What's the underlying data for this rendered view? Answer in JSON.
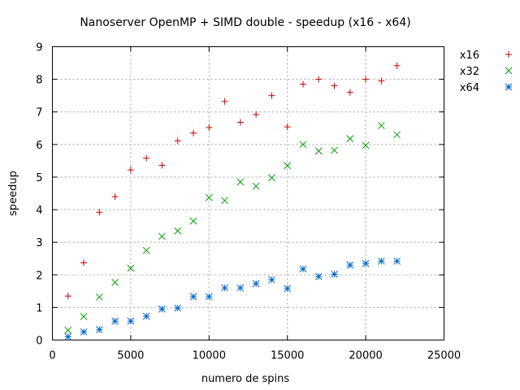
{
  "chart_data": {
    "type": "scatter",
    "title": "Nanoserver OpenMP + SIMD double - speedup (x16 - x64)",
    "xlabel": "numero de spins",
    "ylabel": "speedup",
    "xlim": [
      0,
      25000
    ],
    "ylim": [
      0,
      9
    ],
    "xticks": [
      0,
      5000,
      10000,
      15000,
      20000,
      25000
    ],
    "yticks": [
      0,
      1,
      2,
      3,
      4,
      5,
      6,
      7,
      8,
      9
    ],
    "grid": true,
    "legend_position": "top-right-outside",
    "x": [
      1000,
      2000,
      3000,
      4000,
      5000,
      6000,
      7000,
      8000,
      9000,
      10000,
      11000,
      12000,
      13000,
      14000,
      15000,
      16000,
      17000,
      18000,
      19000,
      20000,
      21000,
      22000
    ],
    "series": [
      {
        "name": "x16",
        "marker": "plus",
        "color": "#cc0000",
        "values": [
          1.35,
          2.37,
          3.92,
          4.4,
          5.22,
          5.58,
          5.36,
          6.11,
          6.35,
          6.52,
          7.32,
          6.68,
          6.92,
          7.5,
          6.54,
          7.85,
          8.0,
          7.8,
          7.6,
          8.0,
          7.95,
          8.42
        ]
      },
      {
        "name": "x32",
        "marker": "cross",
        "color": "#00a000",
        "values": [
          0.3,
          0.72,
          1.32,
          1.77,
          2.2,
          2.75,
          3.18,
          3.35,
          3.65,
          4.37,
          4.28,
          4.85,
          4.72,
          4.98,
          5.35,
          6.0,
          5.8,
          5.82,
          6.18,
          5.97,
          6.58,
          6.3
        ]
      },
      {
        "name": "x64",
        "marker": "star",
        "color": "#0066cc",
        "values": [
          0.1,
          0.25,
          0.32,
          0.58,
          0.58,
          0.73,
          0.95,
          0.98,
          1.33,
          1.33,
          1.6,
          1.6,
          1.73,
          1.85,
          1.58,
          2.18,
          1.95,
          2.02,
          2.3,
          2.35,
          2.42,
          2.42
        ]
      }
    ]
  }
}
